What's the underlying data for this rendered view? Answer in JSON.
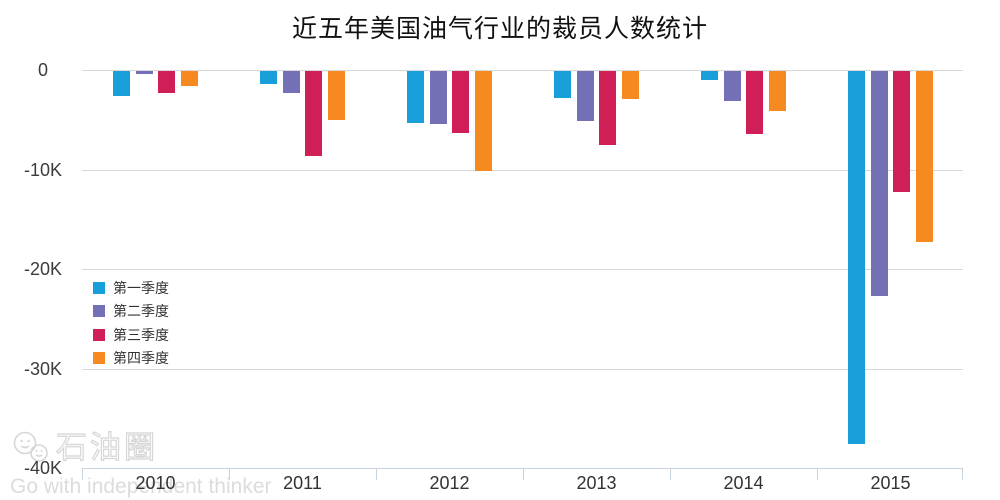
{
  "title": "近五年美国油气行业的裁员人数统计",
  "colors": {
    "q1": "#189fd9",
    "q2": "#7370b5",
    "q3": "#d01f56",
    "q4": "#f68a20",
    "gridline": "#d8d8d8",
    "axis_line": "#c9d3de",
    "axis_label": "#3c3c3c",
    "watermark": "#d9d9d9"
  },
  "chart_data": {
    "type": "bar",
    "title": "近五年美国油气行业的裁员人数统计",
    "categories": [
      "2010",
      "2011",
      "2012",
      "2013",
      "2014",
      "2015"
    ],
    "series": [
      {
        "name": "第一季度",
        "color_key": "q1",
        "values": [
          -2500,
          -1300,
          -5200,
          -2700,
          -900,
          -37500
        ]
      },
      {
        "name": "第二季度",
        "color_key": "q2",
        "values": [
          -300,
          -2200,
          -5300,
          -5000,
          -3000,
          -22600
        ]
      },
      {
        "name": "第三季度",
        "color_key": "q3",
        "values": [
          -2250,
          -8500,
          -6200,
          -7400,
          -6300,
          -12200
        ]
      },
      {
        "name": "第四季度",
        "color_key": "q4",
        "values": [
          -1500,
          -4900,
          -10100,
          -2800,
          -4000,
          -17200
        ]
      }
    ],
    "xlabel": "",
    "ylabel": "",
    "ylim": [
      -40000,
      0
    ],
    "ytick_labels": [
      "0",
      "-10K",
      "-20K",
      "-30K",
      "-40K"
    ],
    "grid": true,
    "legend_position": "middle-left"
  },
  "watermark": {
    "logo_icon": "wechat-chat-bubbles-icon",
    "brand": "石油圈",
    "slogan": "Go with independent thinker"
  }
}
